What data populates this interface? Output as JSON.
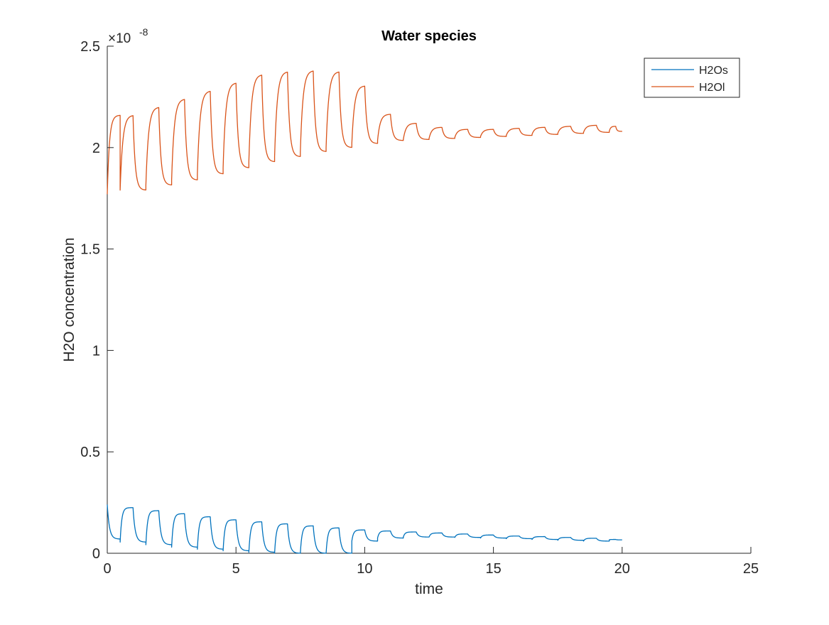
{
  "chart_data": {
    "type": "line",
    "title": "Water species",
    "xlabel": "time",
    "ylabel": "H2O concentration",
    "y_exponent_label": "×10",
    "y_exponent": "-8",
    "xlim": [
      0,
      25
    ],
    "ylim": [
      0,
      2.5e-08
    ],
    "xticks": [
      0,
      5,
      10,
      15,
      20,
      25
    ],
    "xtick_labels": [
      "0",
      "5",
      "10",
      "15",
      "20",
      "25"
    ],
    "yticks": [
      0,
      5e-09,
      1e-08,
      1.5e-08,
      2e-08,
      2.5e-08
    ],
    "ytick_labels": [
      "0",
      "0.5",
      "1",
      "1.5",
      "2",
      "2.5"
    ],
    "grid": false,
    "legend_position": "top-right",
    "series": [
      {
        "name": "H2Os",
        "color": "#0072BD",
        "cycles": [
          {
            "t0": 0.0,
            "peak": 2.4e-09,
            "trough": 7e-10
          },
          {
            "t0": 0.5,
            "peak": 2.25e-09,
            "trough": 5.5e-10
          },
          {
            "t0": 1.5,
            "peak": 2.1e-09,
            "trough": 4.2e-10
          },
          {
            "t0": 2.5,
            "peak": 1.95e-09,
            "trough": 3e-10
          },
          {
            "t0": 3.5,
            "peak": 1.8e-09,
            "trough": 2e-10
          },
          {
            "t0": 4.5,
            "peak": 1.65e-09,
            "trough": 1.2e-10
          },
          {
            "t0": 5.5,
            "peak": 1.55e-09,
            "trough": 5e-11
          },
          {
            "t0": 6.5,
            "peak": 1.45e-09,
            "trough": 0.0
          },
          {
            "t0": 7.5,
            "peak": 1.35e-09,
            "trough": 0.0
          },
          {
            "t0": 8.5,
            "peak": 1.25e-09,
            "trough": 0.0
          },
          {
            "t0": 9.5,
            "peak": 1.15e-09,
            "trough": 6e-10
          },
          {
            "t0": 10.5,
            "peak": 1.1e-09,
            "trough": 7.5e-10
          },
          {
            "t0": 11.5,
            "peak": 1.05e-09,
            "trough": 8e-10
          },
          {
            "t0": 12.5,
            "peak": 1e-09,
            "trough": 8e-10
          },
          {
            "t0": 13.5,
            "peak": 9.5e-10,
            "trough": 7.8e-10
          },
          {
            "t0": 14.5,
            "peak": 9e-10,
            "trough": 7.5e-10
          },
          {
            "t0": 15.5,
            "peak": 8.5e-10,
            "trough": 7.2e-10
          },
          {
            "t0": 16.5,
            "peak": 8.2e-10,
            "trough": 6.8e-10
          },
          {
            "t0": 17.5,
            "peak": 7.8e-10,
            "trough": 6.4e-10
          },
          {
            "t0": 18.5,
            "peak": 7.4e-10,
            "trough": 6e-10
          },
          {
            "t0": 19.5,
            "peak": 6.8e-10,
            "trough": 6.6e-10
          }
        ]
      },
      {
        "name": "H2Ol",
        "color": "#D95319",
        "cycles": [
          {
            "t0": 0.0,
            "peak": 2.16e-08,
            "trough": 1.77e-08
          },
          {
            "t0": 0.5,
            "peak": 2.16e-08,
            "trough": 1.79e-08
          },
          {
            "t0": 1.5,
            "peak": 2.2e-08,
            "trough": 1.815e-08
          },
          {
            "t0": 2.5,
            "peak": 2.24e-08,
            "trough": 1.84e-08
          },
          {
            "t0": 3.5,
            "peak": 2.28e-08,
            "trough": 1.87e-08
          },
          {
            "t0": 4.5,
            "peak": 2.32e-08,
            "trough": 1.9e-08
          },
          {
            "t0": 5.5,
            "peak": 2.36e-08,
            "trough": 1.93e-08
          },
          {
            "t0": 6.5,
            "peak": 2.375e-08,
            "trough": 1.955e-08
          },
          {
            "t0": 7.5,
            "peak": 2.38e-08,
            "trough": 1.98e-08
          },
          {
            "t0": 8.5,
            "peak": 2.375e-08,
            "trough": 2e-08
          },
          {
            "t0": 9.5,
            "peak": 2.305e-08,
            "trough": 2.02e-08
          },
          {
            "t0": 10.5,
            "peak": 2.165e-08,
            "trough": 2.035e-08
          },
          {
            "t0": 11.5,
            "peak": 2.12e-08,
            "trough": 2.04e-08
          },
          {
            "t0": 12.5,
            "peak": 2.1e-08,
            "trough": 2.045e-08
          },
          {
            "t0": 13.5,
            "peak": 2.09e-08,
            "trough": 2.05e-08
          },
          {
            "t0": 14.5,
            "peak": 2.09e-08,
            "trough": 2.055e-08
          },
          {
            "t0": 15.5,
            "peak": 2.095e-08,
            "trough": 2.06e-08
          },
          {
            "t0": 16.5,
            "peak": 2.1e-08,
            "trough": 2.065e-08
          },
          {
            "t0": 17.5,
            "peak": 2.105e-08,
            "trough": 2.07e-08
          },
          {
            "t0": 18.5,
            "peak": 2.11e-08,
            "trough": 2.075e-08
          },
          {
            "t0": 19.5,
            "peak": 2.105e-08,
            "trough": 2.08e-08
          }
        ]
      }
    ]
  }
}
